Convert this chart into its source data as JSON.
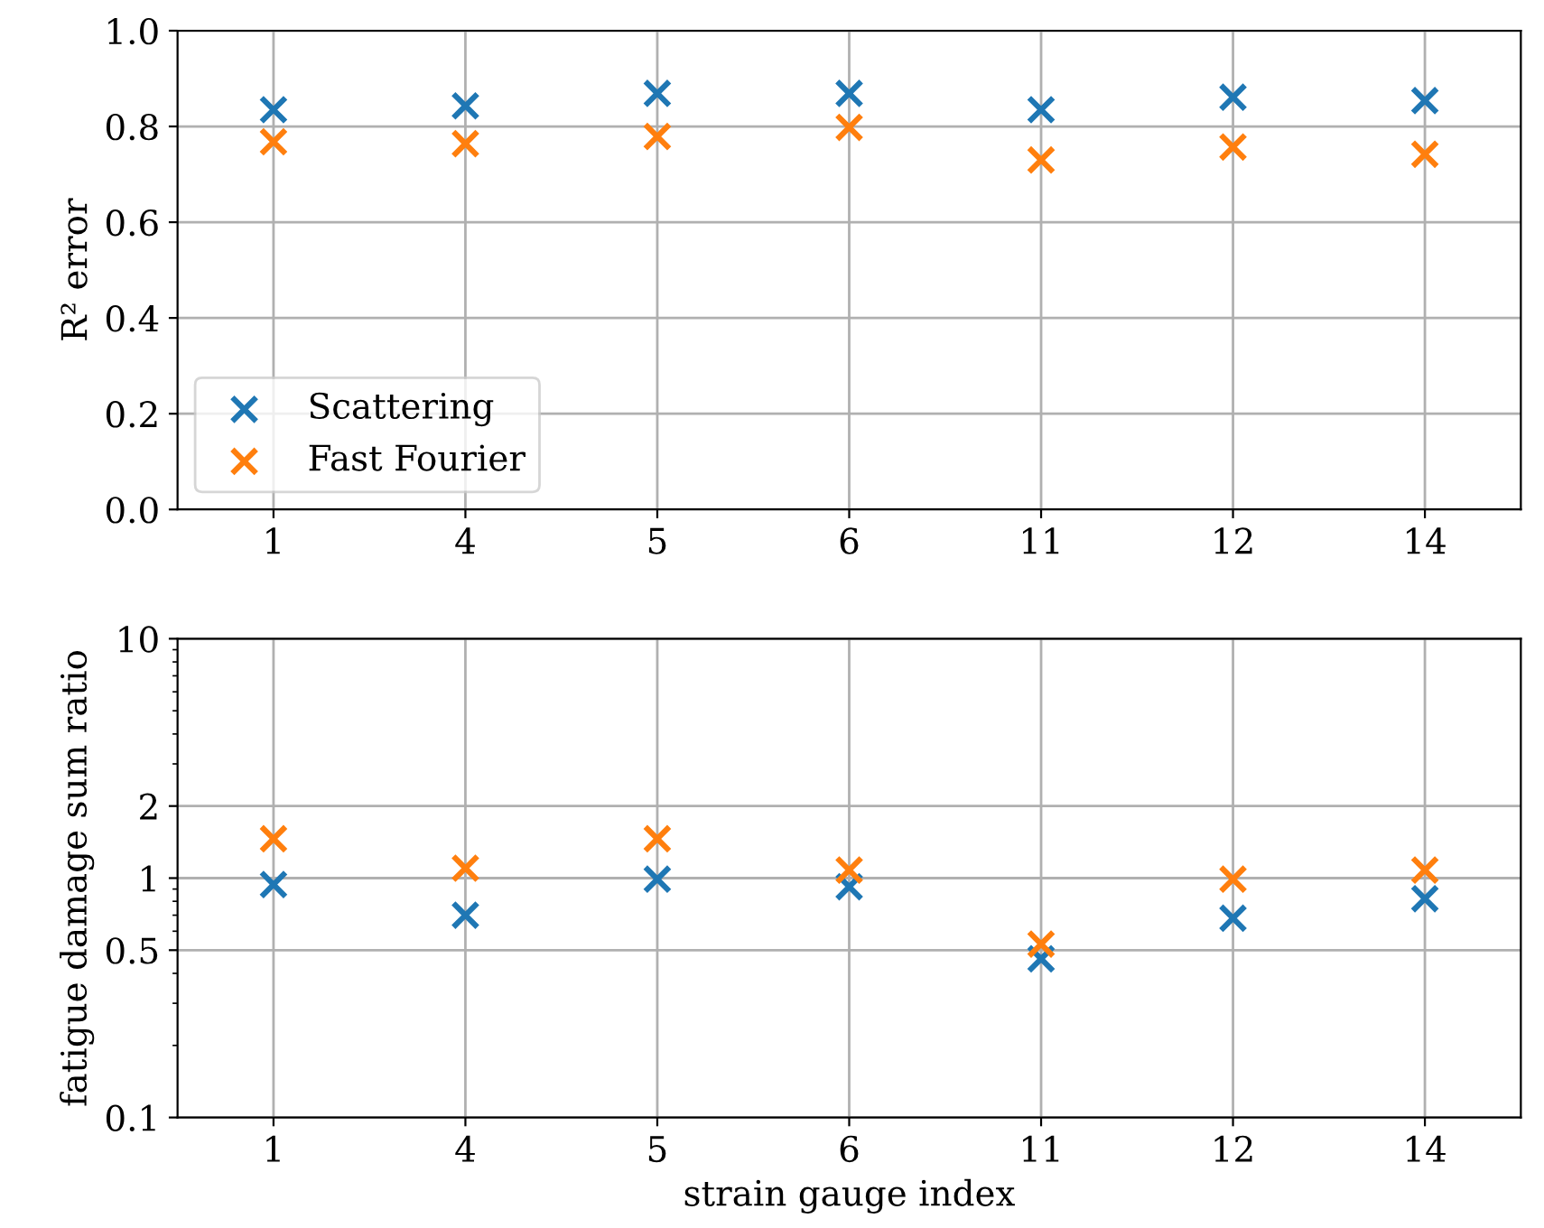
{
  "chart_data": [
    {
      "type": "scatter",
      "ylabel": "R² error",
      "categories": [
        "1",
        "4",
        "5",
        "6",
        "11",
        "12",
        "14"
      ],
      "ylim": [
        0,
        1
      ],
      "yticks": [
        {
          "value": 0,
          "label": "0.0"
        },
        0.2,
        0.4,
        0.6,
        0.8,
        {
          "value": 1,
          "label": "1.0"
        }
      ],
      "grid": true,
      "legend": "bottom left",
      "marker": "cross",
      "series": [
        {
          "name": "Scattering",
          "color": "#1f77b4",
          "values": [
            0.835,
            0.843,
            0.869,
            0.869,
            0.835,
            0.861,
            0.854
          ]
        },
        {
          "name": "Fast Fourier",
          "color": "#ff7f0e",
          "values": [
            0.768,
            0.764,
            0.779,
            0.798,
            0.73,
            0.757,
            0.742
          ]
        }
      ]
    },
    {
      "type": "scatter",
      "xlabel": "strain gauge index",
      "ylabel": "fatigue damage sum ratio",
      "categories": [
        "1",
        "4",
        "5",
        "6",
        "11",
        "12",
        "14"
      ],
      "log": true,
      "ylim": [
        0.1,
        10
      ],
      "yticks": [
        0.1,
        0.5,
        1,
        2,
        10
      ],
      "grid": true,
      "marker": "cross",
      "series": [
        {
          "color": "#1f77b4",
          "values": [
            0.94,
            0.7,
            0.99,
            0.92,
            0.46,
            0.68,
            0.82
          ]
        },
        {
          "color": "#ff7f0e",
          "values": [
            1.46,
            1.1,
            1.46,
            1.08,
            0.53,
            0.99,
            1.08
          ]
        }
      ]
    }
  ]
}
